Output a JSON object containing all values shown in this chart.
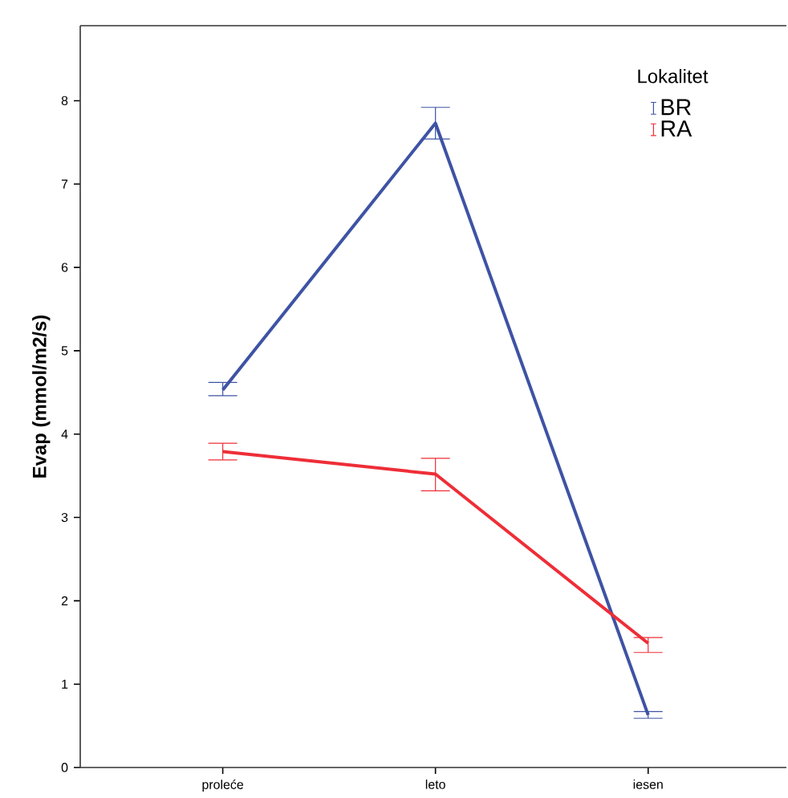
{
  "chart_data": {
    "type": "line",
    "ylabel": "Evap (mmol/m2/s)",
    "legend_title": "Lokalitet",
    "categories": [
      "proleće",
      "leto",
      "iesen"
    ],
    "ylim": [
      0,
      8.9
    ],
    "yticks": [
      0,
      1,
      2,
      3,
      4,
      5,
      6,
      7,
      8
    ],
    "legend": "top right",
    "line_style": "solid",
    "series": [
      {
        "name": "BR",
        "color": "#3e53a4",
        "values": [
          4.53,
          7.73,
          0.63
        ],
        "errors": [
          [
            4.46,
            4.62
          ],
          [
            7.54,
            7.92
          ],
          [
            0.59,
            0.67
          ]
        ]
      },
      {
        "name": "RA",
        "color": "#ee2e37",
        "values": [
          3.79,
          3.52,
          1.49
        ],
        "errors": [
          [
            3.69,
            3.89
          ],
          [
            3.32,
            3.71
          ],
          [
            1.38,
            1.56
          ]
        ]
      }
    ]
  }
}
